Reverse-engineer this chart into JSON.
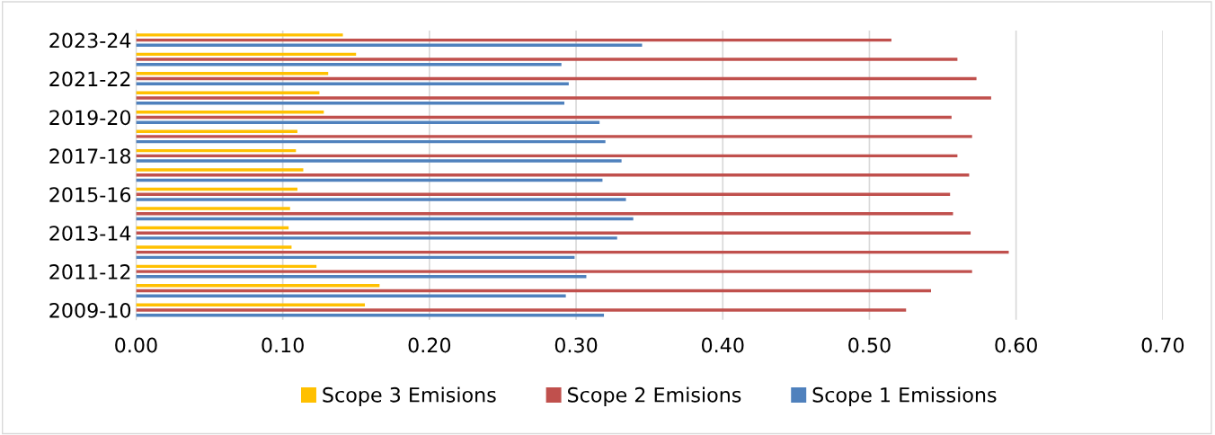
{
  "chart_data": {
    "type": "bar",
    "orientation": "horizontal",
    "categories": [
      "2023-24",
      null,
      "2021-22",
      null,
      "2019-20",
      null,
      "2017-18",
      null,
      "2015-16",
      null,
      "2013-14",
      null,
      "2011-12",
      null,
      "2009-10"
    ],
    "series": [
      {
        "name": "Scope 3 Emisions",
        "color": "#ffc000",
        "values": [
          0.141,
          0.15,
          0.131,
          0.125,
          0.128,
          0.11,
          0.109,
          0.114,
          0.11,
          0.105,
          0.104,
          0.106,
          0.123,
          0.166,
          0.156
        ]
      },
      {
        "name": "Scope 2 Emisions",
        "color": "#c0504d",
        "values": [
          0.515,
          0.56,
          0.573,
          0.583,
          0.556,
          0.57,
          0.56,
          0.568,
          0.555,
          0.557,
          0.569,
          0.595,
          0.57,
          0.542,
          0.525
        ]
      },
      {
        "name": "Scope 1 Emissions",
        "color": "#4f81bd",
        "values": [
          0.345,
          0.29,
          0.295,
          0.292,
          0.316,
          0.32,
          0.331,
          0.318,
          0.334,
          0.339,
          0.328,
          0.299,
          0.307,
          0.293,
          0.319
        ]
      }
    ],
    "xlim": [
      0,
      0.7
    ],
    "xticks": [
      {
        "value": 0,
        "label": "0.00"
      },
      {
        "value": 0.1,
        "label": "0.10"
      },
      {
        "value": 0.2,
        "label": "0.20"
      },
      {
        "value": 0.3,
        "label": "0.30"
      },
      {
        "value": 0.4,
        "label": "0.40"
      },
      {
        "value": 0.5,
        "label": "0.50"
      },
      {
        "value": 0.6,
        "label": "0.60"
      },
      {
        "value": 0.7,
        "label": "0.70"
      }
    ],
    "grid": "x",
    "legend": "bottom"
  }
}
